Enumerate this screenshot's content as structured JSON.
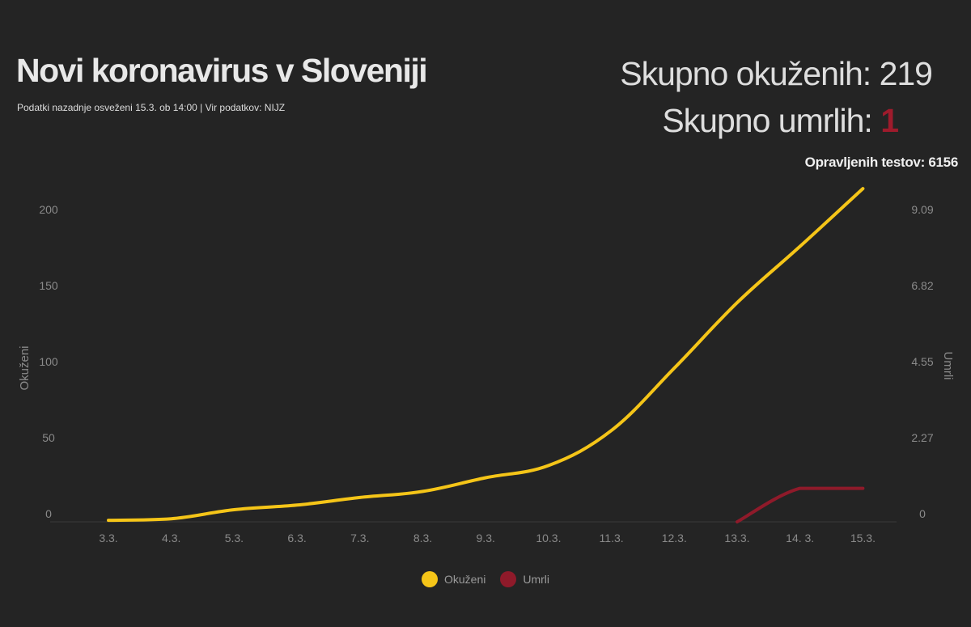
{
  "header": {
    "title": "Novi koronavirus v Sloveniji",
    "subtitle": "Podatki nazadnje osveženi 15.3. ob 14:00 | Vir podatkov: NIJZ"
  },
  "stats": {
    "total_label": "Skupno okuženih: ",
    "total_value": "219",
    "deaths_label": "Skupno umrlih: ",
    "deaths_value": "1",
    "tests_label": "Opravljenih testov: ",
    "tests_value": "6156"
  },
  "colors": {
    "infected": "#f5c518",
    "deaths": "#8f1a2a",
    "background": "#242424"
  },
  "chart_data": {
    "type": "line",
    "categories": [
      "3.3.",
      "4.3.",
      "5.3.",
      "6.3.",
      "7.3.",
      "8.3.",
      "9.3.",
      "10.3.",
      "11.3.",
      "12.3.",
      "13.3.",
      "14. 3.",
      "15.3."
    ],
    "series": [
      {
        "name": "Okuženi",
        "axis": "left",
        "values": [
          1,
          2,
          8,
          11,
          16,
          20,
          29,
          37,
          60,
          101,
          144,
          181,
          219
        ]
      },
      {
        "name": "Umrli",
        "axis": "right",
        "values": [
          null,
          null,
          null,
          null,
          null,
          null,
          null,
          null,
          null,
          null,
          0,
          1,
          1
        ]
      }
    ],
    "y_left": {
      "label": "Okuženi",
      "ticks": [
        "0",
        "50",
        "100",
        "150",
        "200"
      ],
      "range": [
        0,
        210
      ]
    },
    "y_right": {
      "label": "Umrli",
      "ticks": [
        "0",
        "2.27",
        "4.55",
        "6.82",
        "9.09"
      ],
      "range": [
        0,
        9.55
      ]
    },
    "grid": false,
    "legend": "bottom-center"
  }
}
